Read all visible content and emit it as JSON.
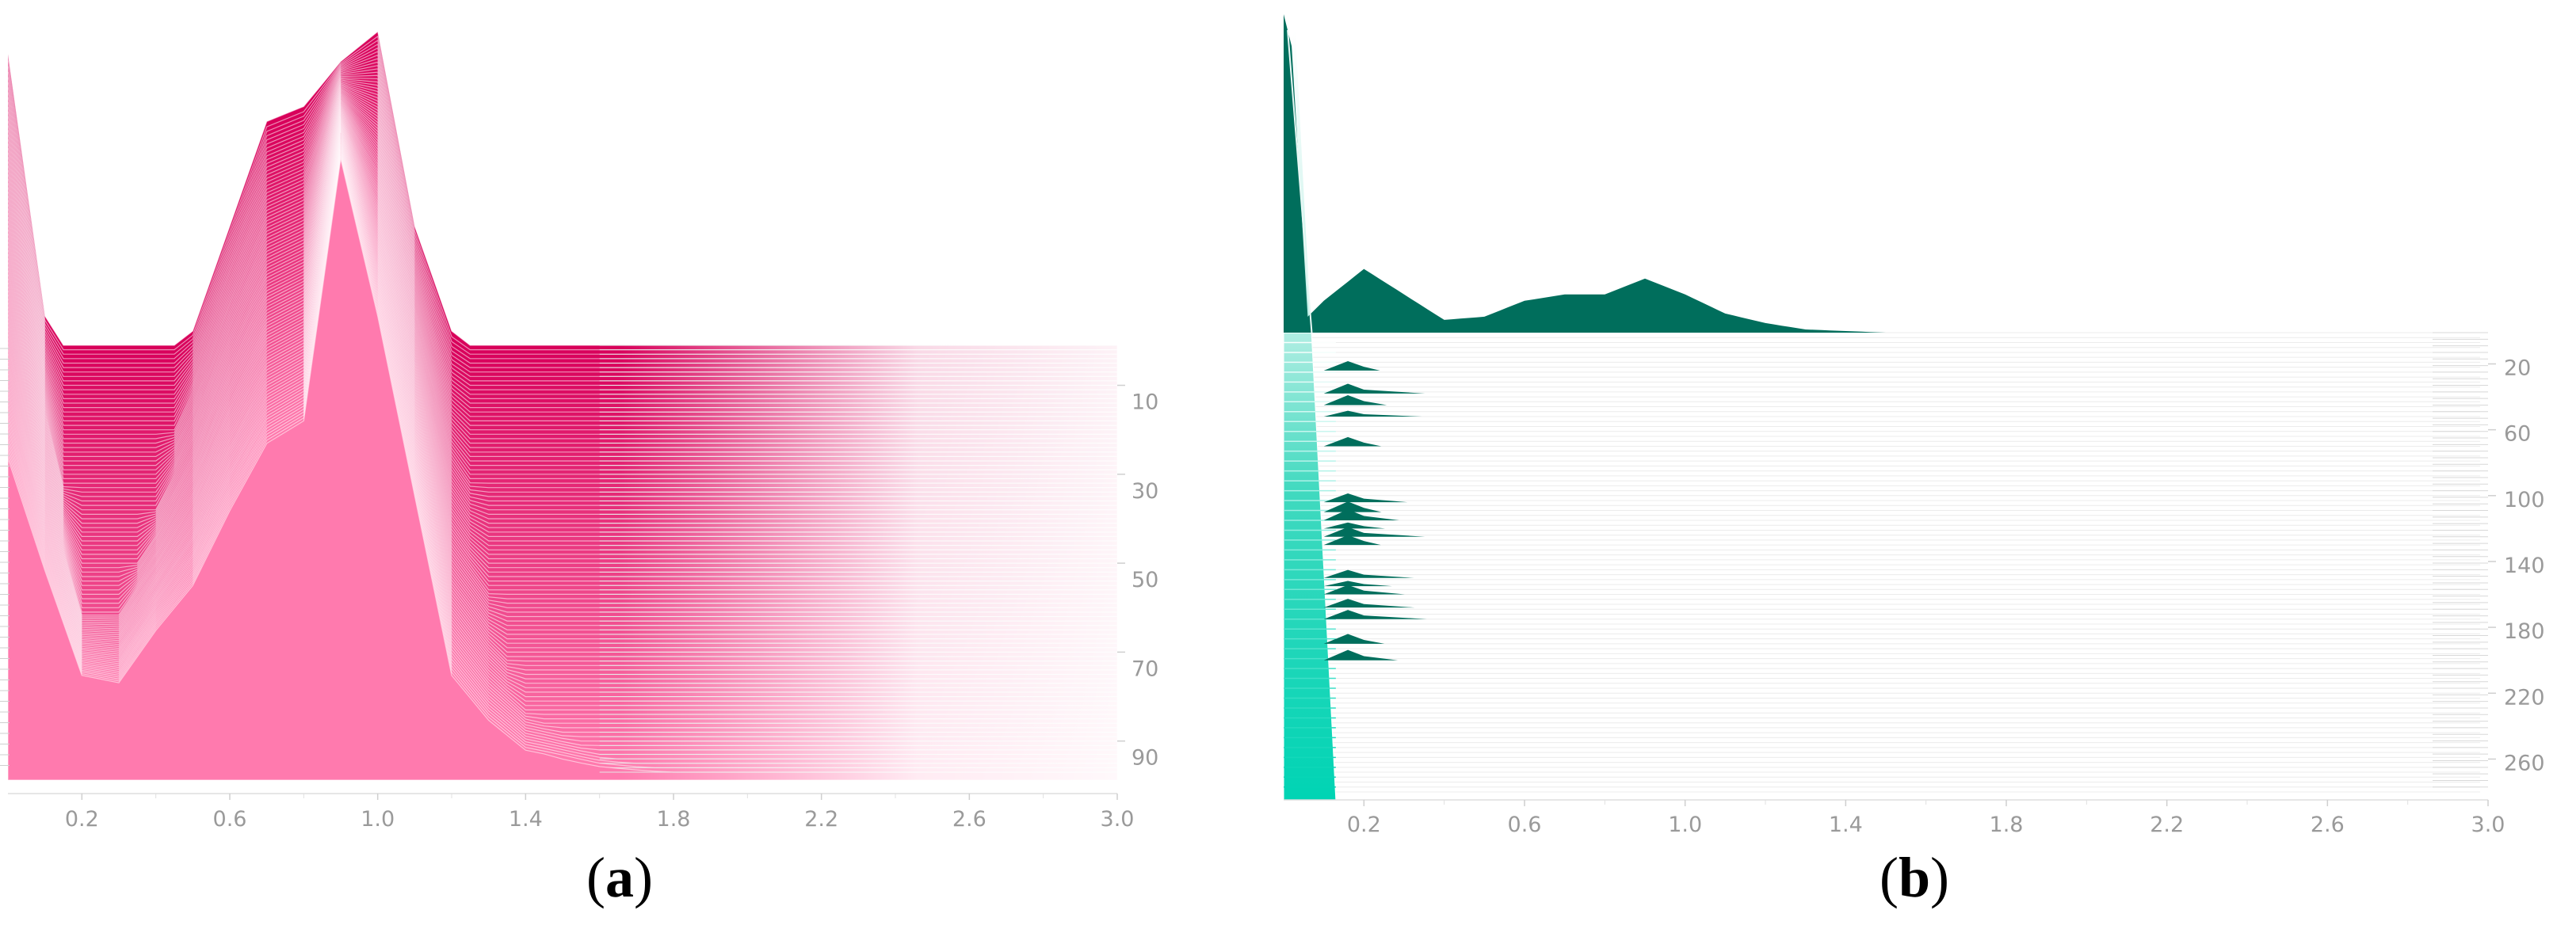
{
  "chart_data": [
    {
      "type": "area",
      "label": "a",
      "xlim": [
        0.0,
        3.0
      ],
      "x_ticks": [
        "0.2",
        "0.6",
        "1.0",
        "1.4",
        "1.8",
        "2.2",
        "2.6",
        "3.0"
      ],
      "y_tick_labels": [
        "10",
        "30",
        "50",
        "70",
        "90"
      ],
      "y_range": [
        1,
        97
      ],
      "n_layers": 97,
      "color_dark": "#d8005a",
      "color_light": "#ff7aae",
      "background_envelope": {
        "x": [
          0.0,
          0.1,
          0.2,
          0.3,
          0.4,
          0.5,
          0.6,
          0.7,
          0.8,
          0.9,
          1.0,
          1.1,
          1.2,
          1.3,
          1.4,
          1.6,
          1.8,
          2.0,
          2.4,
          3.0
        ],
        "y": [
          0.43,
          0.28,
          0.14,
          0.13,
          0.2,
          0.26,
          0.36,
          0.45,
          0.48,
          0.83,
          0.62,
          0.38,
          0.14,
          0.08,
          0.04,
          0.02,
          0.01,
          0.0,
          0.0,
          0.0
        ]
      },
      "top_envelope": {
        "x": [
          0.0,
          0.1,
          0.2,
          0.3,
          0.4,
          0.5,
          0.6,
          0.7,
          0.8,
          0.9,
          1.0,
          1.1,
          1.2,
          1.3,
          1.4,
          1.6,
          1.8,
          2.0,
          2.4,
          3.0
        ],
        "y": [
          0.97,
          0.62,
          0.38,
          0.4,
          0.48,
          0.6,
          0.74,
          0.88,
          0.9,
          0.96,
          1.0,
          0.74,
          0.6,
          0.52,
          0.44,
          0.4,
          0.38,
          0.37,
          0.37,
          0.37
        ]
      }
    },
    {
      "type": "area",
      "label": "b",
      "xlim": [
        0.0,
        3.0
      ],
      "x_ticks": [
        "0.2",
        "0.6",
        "1.0",
        "1.4",
        "1.8",
        "2.2",
        "2.6",
        "3.0"
      ],
      "y_tick_labels": [
        "20",
        "60",
        "100",
        "140",
        "180",
        "220",
        "260"
      ],
      "y_range": [
        1,
        280
      ],
      "n_layers": 280,
      "color_dark": "#006e5c",
      "color_light": "#00d4b4",
      "top_layer": {
        "x": [
          0.0,
          0.02,
          0.06,
          0.1,
          0.2,
          0.3,
          0.4,
          0.5,
          0.6,
          0.7,
          0.8,
          0.9,
          1.0,
          1.1,
          1.2,
          1.3,
          1.4,
          1.5,
          1.6,
          2.0,
          3.0
        ],
        "y": [
          1.0,
          0.9,
          0.05,
          0.1,
          0.2,
          0.12,
          0.04,
          0.05,
          0.1,
          0.12,
          0.12,
          0.17,
          0.12,
          0.06,
          0.03,
          0.01,
          0.005,
          0.0,
          0.0,
          0.0,
          0.0
        ]
      },
      "spike_layers": [
        24,
        38,
        45,
        52,
        70,
        104,
        110,
        115,
        120,
        125,
        130,
        150,
        155,
        160,
        168,
        175,
        190,
        200
      ]
    }
  ],
  "panel_labels": {
    "a": "a",
    "b": "b",
    "open": "(",
    "close": ")"
  }
}
